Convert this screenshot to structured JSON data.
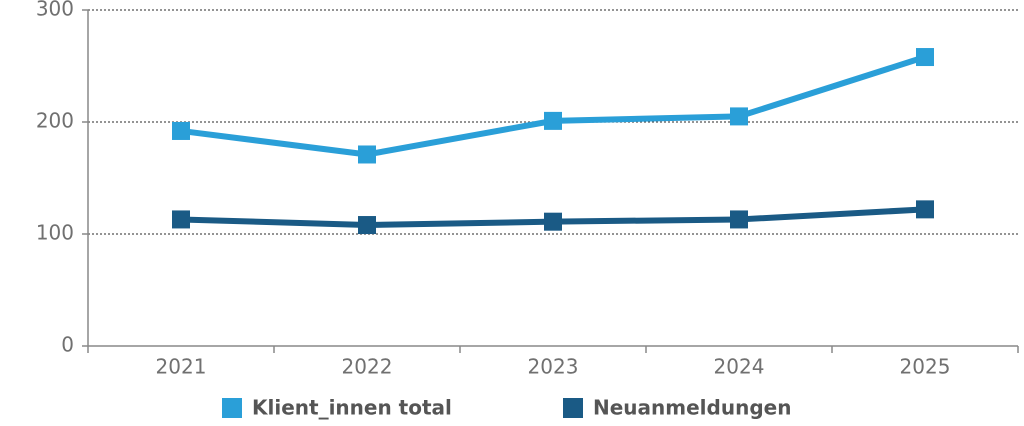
{
  "chart_data": {
    "type": "line",
    "categories": [
      "2021",
      "2022",
      "2023",
      "2024",
      "2025"
    ],
    "series": [
      {
        "name": "Klient_innen total",
        "color": "#2a9fd8",
        "values": [
          192,
          171,
          201,
          205,
          258
        ]
      },
      {
        "name": "Neuanmeldungen",
        "color": "#1a5a85",
        "values": [
          113,
          108,
          111,
          113,
          122
        ]
      }
    ],
    "ylim": [
      0,
      300
    ],
    "yticks": [
      0,
      100,
      200,
      300
    ],
    "grid": true
  }
}
